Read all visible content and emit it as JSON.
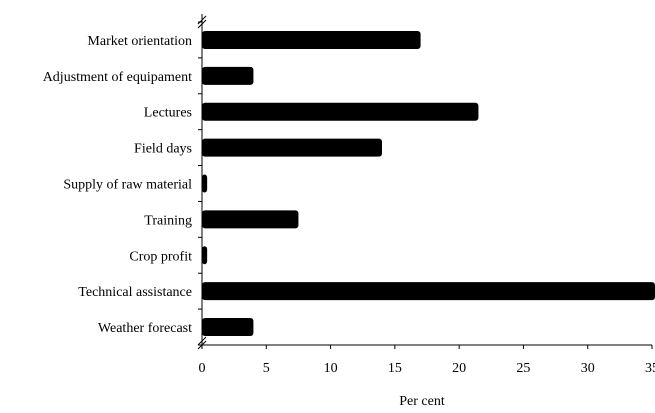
{
  "chart_data": {
    "type": "bar",
    "orientation": "horizontal",
    "categories": [
      "Market orientation",
      "Adjustment of equipament",
      "Lectures",
      "Field days",
      "Supply of raw material",
      "Training",
      "Crop profit",
      "Technical assistance",
      "Weather forecast"
    ],
    "values": [
      17,
      4,
      21.5,
      14,
      0.4,
      7.5,
      0.4,
      35.5,
      4
    ],
    "xlabel": "Per cent",
    "ylabel": "",
    "title": "",
    "xlim": [
      0,
      35
    ],
    "xticks": [
      0,
      5,
      10,
      15,
      20,
      25,
      30,
      35
    ],
    "xtick_labels": [
      "0",
      "5",
      "10",
      "15",
      "20",
      "25",
      "30",
      "35"
    ],
    "grid": false,
    "bar_color": "#000000"
  }
}
